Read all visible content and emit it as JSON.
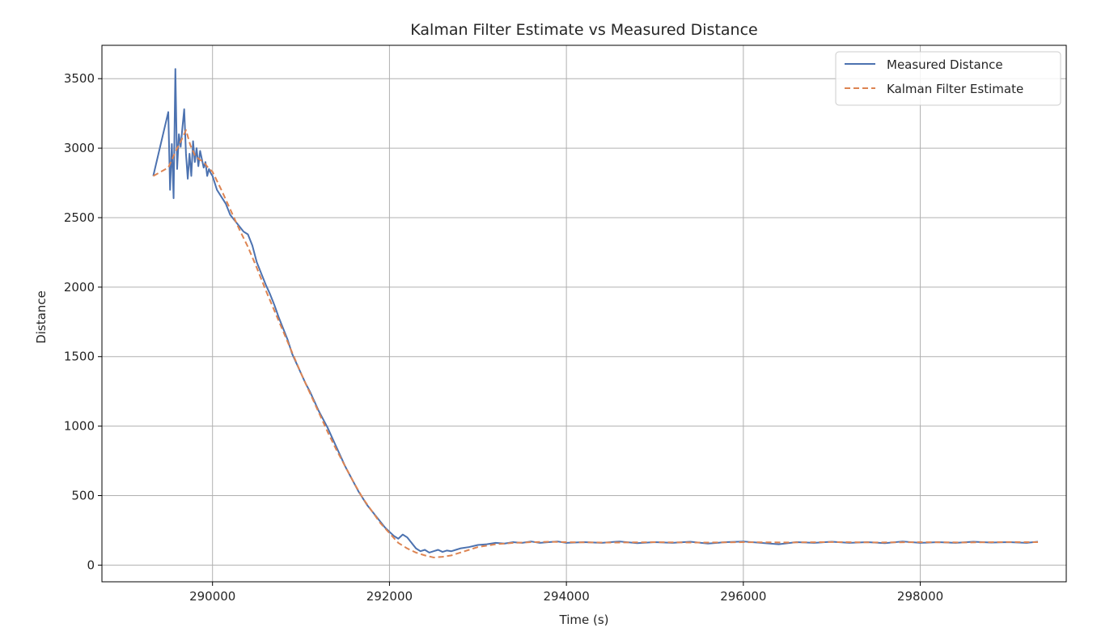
{
  "chart_data": {
    "type": "line",
    "title": "Kalman Filter Estimate vs Measured Distance",
    "xlabel": "Time (s)",
    "ylabel": "Distance",
    "xlim": [
      288750,
      299650
    ],
    "ylim": [
      -120,
      3740
    ],
    "xticks": [
      290000,
      292000,
      294000,
      296000,
      298000
    ],
    "yticks": [
      0,
      500,
      1000,
      1500,
      2000,
      2500,
      3000,
      3500
    ],
    "grid": true,
    "legend_position": "top-right",
    "colors": {
      "measured": "#4c72b0",
      "kalman": "#dd8452",
      "grid": "#b0b0b0",
      "axis": "#000000"
    },
    "series": [
      {
        "name": "Measured Distance",
        "style": "solid",
        "x": [
          289330,
          289500,
          289520,
          289540,
          289560,
          289580,
          289600,
          289620,
          289640,
          289660,
          289680,
          289700,
          289720,
          289740,
          289760,
          289780,
          289800,
          289820,
          289840,
          289860,
          289880,
          289900,
          289920,
          289940,
          289960,
          289980,
          290000,
          290050,
          290100,
          290150,
          290200,
          290250,
          290300,
          290350,
          290400,
          290450,
          290500,
          290550,
          290600,
          290650,
          290700,
          290750,
          290800,
          290850,
          290900,
          290950,
          291000,
          291050,
          291100,
          291150,
          291200,
          291250,
          291300,
          291350,
          291400,
          291450,
          291500,
          291550,
          291600,
          291650,
          291700,
          291750,
          291800,
          291850,
          291900,
          291950,
          292000,
          292050,
          292100,
          292150,
          292200,
          292250,
          292300,
          292350,
          292400,
          292450,
          292500,
          292550,
          292600,
          292650,
          292700,
          292750,
          292800,
          292900,
          293000,
          293100,
          293200,
          293300,
          293400,
          293500,
          293600,
          293700,
          293800,
          293900,
          294000,
          294200,
          294400,
          294600,
          294800,
          295000,
          295200,
          295400,
          295600,
          295800,
          296000,
          296200,
          296400,
          296600,
          296800,
          297000,
          297200,
          297400,
          297600,
          297800,
          298000,
          298200,
          298400,
          298600,
          298800,
          299000,
          299200,
          299330
        ],
        "values": [
          2800,
          3260,
          2700,
          3030,
          2640,
          3570,
          2850,
          3100,
          3010,
          3150,
          3280,
          2960,
          2780,
          2960,
          2800,
          3050,
          2900,
          3000,
          2870,
          2980,
          2920,
          2860,
          2900,
          2800,
          2850,
          2820,
          2800,
          2700,
          2650,
          2600,
          2520,
          2480,
          2440,
          2400,
          2380,
          2300,
          2180,
          2100,
          2020,
          1950,
          1870,
          1780,
          1700,
          1620,
          1520,
          1450,
          1380,
          1310,
          1250,
          1180,
          1110,
          1050,
          990,
          920,
          850,
          780,
          710,
          650,
          590,
          530,
          480,
          430,
          390,
          350,
          310,
          270,
          240,
          210,
          190,
          220,
          200,
          160,
          120,
          100,
          110,
          90,
          100,
          110,
          95,
          105,
          100,
          110,
          120,
          130,
          145,
          150,
          160,
          155,
          165,
          160,
          170,
          160,
          165,
          170,
          160,
          165,
          160,
          170,
          158,
          165,
          160,
          168,
          155,
          165,
          170,
          160,
          150,
          165,
          160,
          168,
          160,
          165,
          158,
          170,
          160,
          165,
          160,
          168,
          162,
          165,
          160,
          168
        ]
      },
      {
        "name": "Kalman Filter Estimate",
        "style": "dashed",
        "x": [
          289330,
          289500,
          289600,
          289650,
          289700,
          289750,
          289800,
          289850,
          289900,
          289950,
          290000,
          290100,
          290200,
          290300,
          290400,
          290500,
          290600,
          290700,
          290800,
          290900,
          291000,
          291100,
          291200,
          291300,
          291400,
          291500,
          291600,
          291700,
          291800,
          291900,
          292000,
          292100,
          292200,
          292300,
          292400,
          292500,
          292600,
          292700,
          292800,
          292900,
          293000,
          293200,
          293400,
          293600,
          293800,
          294000,
          294500,
          295000,
          295500,
          296000,
          296500,
          297000,
          297500,
          298000,
          298500,
          299000,
          299330
        ],
        "values": [
          2800,
          2860,
          3000,
          3060,
          3130,
          3020,
          2950,
          2920,
          2900,
          2860,
          2830,
          2700,
          2560,
          2420,
          2290,
          2140,
          1980,
          1830,
          1680,
          1530,
          1380,
          1240,
          1100,
          960,
          830,
          710,
          590,
          480,
          390,
          300,
          230,
          160,
          120,
          90,
          70,
          55,
          60,
          70,
          90,
          110,
          130,
          150,
          160,
          165,
          168,
          165,
          162,
          165,
          162,
          165,
          163,
          166,
          163,
          165,
          163,
          166,
          165
        ]
      }
    ]
  }
}
